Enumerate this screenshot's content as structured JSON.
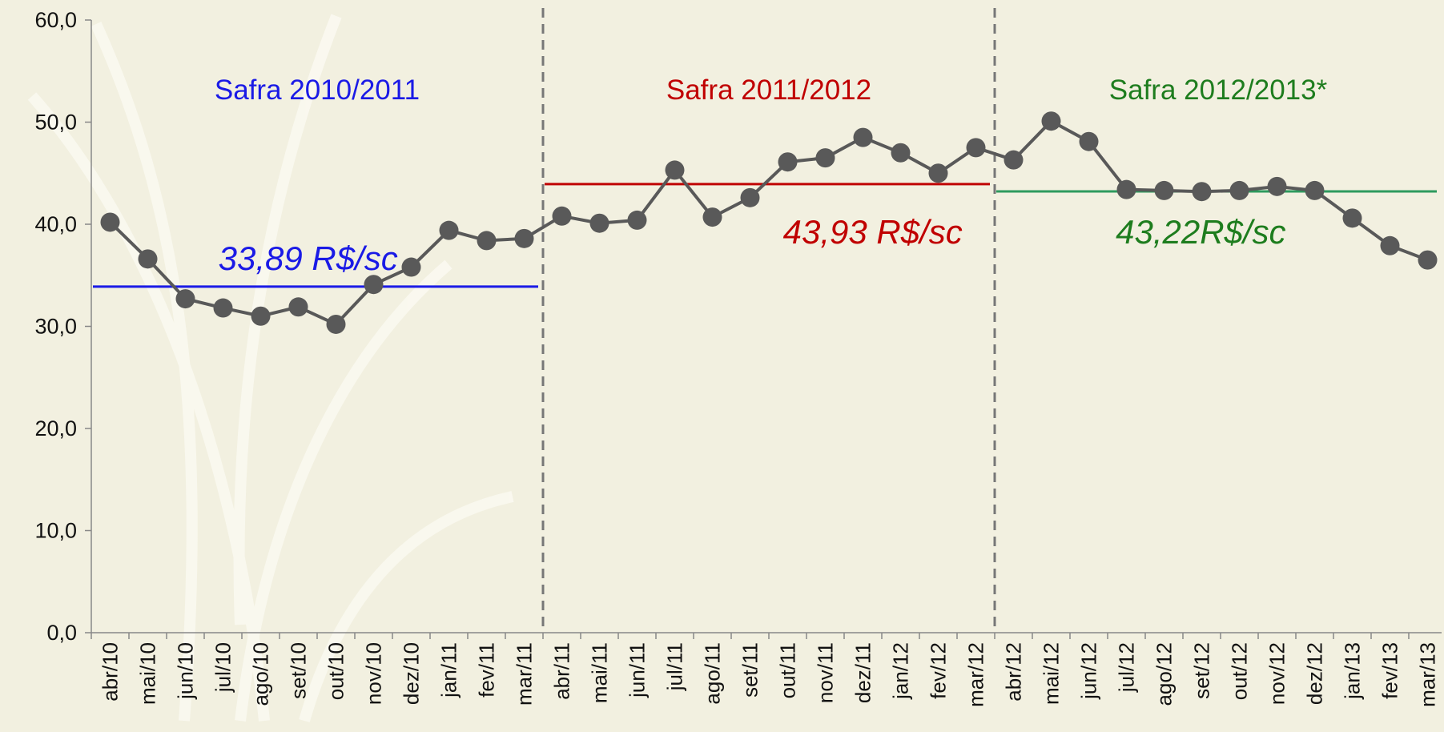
{
  "chart_data": {
    "type": "line",
    "categories": [
      "abr/10",
      "mai/10",
      "jun/10",
      "jul/10",
      "ago/10",
      "set/10",
      "out/10",
      "nov/10",
      "dez/10",
      "jan/11",
      "fev/11",
      "mar/11",
      "abr/11",
      "mai/11",
      "jun/11",
      "jul/11",
      "ago/11",
      "set/11",
      "out/11",
      "nov/11",
      "dez/11",
      "jan/12",
      "fev/12",
      "mar/12",
      "abr/12",
      "mai/12",
      "jun/12",
      "jul/12",
      "ago/12",
      "set/12",
      "out/12",
      "nov/12",
      "dez/12",
      "jan/13",
      "fev/13",
      "mar/13"
    ],
    "series": [
      {
        "color": "#595959",
        "values": [
          40.2,
          36.6,
          32.7,
          31.8,
          31.0,
          31.9,
          30.2,
          34.1,
          35.8,
          39.4,
          38.4,
          38.6,
          40.8,
          40.1,
          40.4,
          45.3,
          40.7,
          42.6,
          46.1,
          46.5,
          48.5,
          47.0,
          45.0,
          47.5,
          46.3,
          50.1,
          48.1,
          43.4,
          43.3,
          43.2,
          43.3,
          43.7,
          43.3,
          40.6,
          37.9,
          36.5
        ]
      }
    ],
    "periods": [
      {
        "label": "Safra 2010/2011",
        "average": 33.89,
        "average_label": "33,89 R$/sc",
        "color": "#1a1ae6",
        "line_color": "#1a1ae6"
      },
      {
        "label": "Safra 2011/2012",
        "average": 43.93,
        "average_label": "43,93 R$/sc",
        "color": "#c00000",
        "line_color": "#c00000"
      },
      {
        "label": "Safra 2012/2013*",
        "average": 43.22,
        "average_label": "43,22R$/sc",
        "color": "#1e7d1e",
        "line_color": "#2e9a5e"
      }
    ],
    "ylim": [
      0,
      60
    ],
    "yticks": [
      {
        "value": 0,
        "label": "0,0"
      },
      {
        "value": 10,
        "label": "10,0"
      },
      {
        "value": 20,
        "label": "20,0"
      },
      {
        "value": 30,
        "label": "30,0"
      },
      {
        "value": 40,
        "label": "40,0"
      },
      {
        "value": 50,
        "label": "50,0"
      },
      {
        "value": 60,
        "label": "60,0"
      }
    ]
  }
}
